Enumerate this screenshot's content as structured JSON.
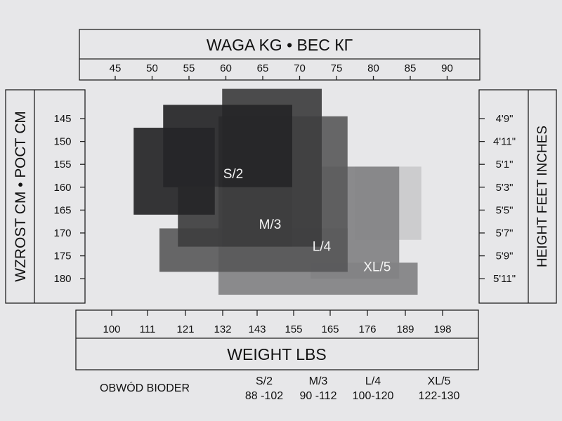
{
  "chart_data": {
    "type": "heatmap",
    "top_axis": {
      "title": "WAGA  KG • ВЕС КГ",
      "unit": "kg",
      "ticks": [
        45,
        50,
        55,
        60,
        65,
        70,
        75,
        80,
        85,
        90
      ]
    },
    "bottom_axis": {
      "title": "WEIGHT LBS",
      "unit": "lbs",
      "ticks": [
        "100",
        "111",
        "121",
        "132",
        "143",
        "155",
        "165",
        "176",
        "189",
        "198"
      ]
    },
    "left_axis": {
      "title": "WZROST CM • РОСТ СМ",
      "unit": "cm",
      "ticks": [
        145,
        150,
        155,
        160,
        165,
        170,
        175,
        180
      ]
    },
    "right_axis": {
      "title": "HEIGHT FEET INCHES",
      "ticks": [
        "4'9\"",
        "4'11\"",
        "5'1\"",
        "5'3\"",
        "5'5\"",
        "5'7\"",
        "5'9\"",
        "5'11\""
      ]
    },
    "sizes": [
      {
        "name": "S/2",
        "color": "#262628",
        "regions": [
          {
            "weight_kg": [
              47.5,
              58.5
            ],
            "height_cm": [
              147,
              166
            ]
          },
          {
            "weight_kg": [
              51.5,
              69.0
            ],
            "height_cm": [
              142,
              160
            ]
          }
        ]
      },
      {
        "name": "M/3",
        "color": "#3e3e40",
        "regions": [
          {
            "weight_kg": [
              59.5,
              73.0
            ],
            "height_cm": [
              138.5,
              173
            ]
          },
          {
            "weight_kg": [
              53.5,
              69.0
            ],
            "height_cm": [
              160,
              173
            ]
          }
        ]
      },
      {
        "name": "L/4",
        "color": "#5b5b5d",
        "regions": [
          {
            "weight_kg": [
              59.0,
              76.5
            ],
            "height_cm": [
              144.5,
              178.5
            ]
          },
          {
            "weight_kg": [
              51.0,
              76.5
            ],
            "height_cm": [
              169,
              178.5
            ]
          }
        ]
      },
      {
        "name": "XL/5",
        "color": "#828284",
        "regions": [
          {
            "weight_kg": [
              71.5,
              83.5
            ],
            "height_cm": [
              155.5,
              180
            ]
          },
          {
            "weight_kg": [
              59.0,
              86.0
            ],
            "height_cm": [
              176.5,
              183.5
            ]
          }
        ]
      }
    ],
    "hip_table": {
      "label": "OBWÓD BIODER",
      "columns": [
        {
          "size": "S/2",
          "range": "88 -102"
        },
        {
          "size": "M/3",
          "range": "90 -112"
        },
        {
          "size": "L/4",
          "range": "100-120"
        },
        {
          "size": "XL/5",
          "range": "122-130"
        }
      ]
    }
  }
}
